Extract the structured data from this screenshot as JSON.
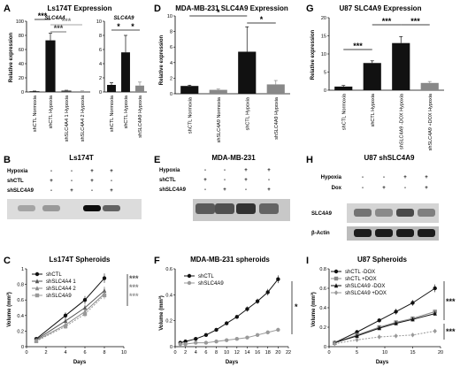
{
  "panels": [
    {
      "id": "A",
      "label": "A",
      "type": "bar",
      "title": "Ls174T Expression",
      "subcharts": [
        {
          "subtitle": "SLC4A4",
          "ylabel": "Relative expression",
          "ylim": [
            0,
            100
          ],
          "yticks": [
            0,
            20,
            40,
            60,
            80,
            100
          ],
          "categories": [
            "shCTL Normoxia",
            "shCTL Hypoxia",
            "shSLC4A4 1 Hypoxia",
            "shSLC4A4 2 Hypoxia"
          ],
          "values": [
            1,
            73,
            2,
            1
          ],
          "errors": [
            0.3,
            10,
            0.5,
            0.5
          ],
          "colors": [
            "#111111",
            "#111111",
            "#444444",
            "#888888"
          ],
          "sigs": [
            "***",
            "***",
            "***"
          ]
        },
        {
          "subtitle": "SLC4A9",
          "ylim": [
            0,
            10
          ],
          "yticks": [
            0,
            2,
            4,
            6,
            8,
            10
          ],
          "categories": [
            "shCTL Normoxia",
            "shCTL Hypoxia",
            "shSLC4A9 Hypoxia"
          ],
          "values": [
            1,
            5.6,
            0.9
          ],
          "errors": [
            0.3,
            2.4,
            0.5
          ],
          "colors": [
            "#111111",
            "#111111",
            "#888888"
          ],
          "sigs": [
            "*",
            "*"
          ]
        }
      ]
    },
    {
      "id": "D",
      "label": "D",
      "type": "bar",
      "title": "MDA-MB-231 SLC4A9 Expression",
      "ylabel": "Relative expression",
      "ylim": [
        0,
        10
      ],
      "yticks": [
        0,
        2,
        4,
        6,
        8,
        10
      ],
      "categories": [
        "shCTL Normoxia",
        "shSLC4A9 Normoxia",
        "shCTL Hypoxia",
        "shSLC4A9 Hypoxia"
      ],
      "values": [
        1,
        0.5,
        5.4,
        1.2
      ],
      "errors": [
        0.1,
        0.1,
        3.2,
        0.5
      ],
      "colors": [
        "#111111",
        "#888888",
        "#111111",
        "#888888"
      ],
      "sigs": [
        "*",
        "*"
      ]
    },
    {
      "id": "G",
      "label": "G",
      "type": "bar",
      "title": "U87 SLC4A9 Expression",
      "ylabel": "Relative expression",
      "ylim": [
        0,
        20
      ],
      "yticks": [
        0,
        5,
        10,
        15,
        20
      ],
      "categories": [
        "shCTL Normoxia",
        "shCTL Hypoxia",
        "shSLC4A9 -DOX Hypoxia",
        "shSLC4A9 +DOX Hypoxia"
      ],
      "values": [
        1,
        7.5,
        13,
        2
      ],
      "errors": [
        0.3,
        0.6,
        1.8,
        0.4
      ],
      "colors": [
        "#111111",
        "#111111",
        "#111111",
        "#888888"
      ],
      "sigs": [
        "***",
        "***",
        "***"
      ]
    },
    {
      "id": "B",
      "label": "B",
      "type": "blot",
      "title": "Ls174T",
      "rows": [
        "Hypoxia",
        "shCTL",
        "shSLC4A9"
      ],
      "signs": [
        [
          "-",
          "-",
          "+",
          "+"
        ],
        [
          "+",
          "-",
          "+",
          "-"
        ],
        [
          "-",
          "+",
          "-",
          "+"
        ]
      ]
    },
    {
      "id": "E",
      "label": "E",
      "type": "blot",
      "title": "MDA-MB-231",
      "rows": [
        "Hypoxia",
        "shCTL",
        "shSLC4A9"
      ],
      "signs": [
        [
          "-",
          "-",
          "+",
          "+"
        ],
        [
          "+",
          "-",
          "+",
          "-"
        ],
        [
          "-",
          "+",
          "-",
          "+"
        ]
      ]
    },
    {
      "id": "H",
      "label": "H",
      "type": "blot",
      "title": "U87 shSLC4A9",
      "rows": [
        "Hypoxia",
        "Dox"
      ],
      "signs": [
        [
          "-",
          "-",
          "+",
          "+"
        ],
        [
          "-",
          "+",
          "-",
          "+"
        ]
      ],
      "bands": [
        "SLC4A9",
        "β-Actin"
      ]
    },
    {
      "id": "C",
      "label": "C",
      "type": "line",
      "title": "Ls174T Spheroids",
      "xlabel": "Days",
      "ylabel": "Volume (mm³)",
      "xlim": [
        0,
        10
      ],
      "ylim": [
        0,
        1.0
      ],
      "xticks": [
        0,
        2,
        4,
        6,
        8,
        10
      ],
      "yticks": [
        0.0,
        0.2,
        0.4,
        0.6,
        0.8,
        1.0
      ],
      "series": [
        {
          "name": "shCTL",
          "color": "#111111",
          "marker": "circle",
          "dash": "",
          "x": [
            1,
            4,
            6,
            8
          ],
          "y": [
            0.1,
            0.4,
            0.6,
            0.88
          ],
          "err": [
            0.02,
            0.04,
            0.05,
            0.06
          ]
        },
        {
          "name": "shSLC4A4 1",
          "color": "#555555",
          "marker": "triangle",
          "dash": "",
          "x": [
            1,
            4,
            6,
            8
          ],
          "y": [
            0.09,
            0.33,
            0.5,
            0.72
          ],
          "err": [
            0.02,
            0.04,
            0.04,
            0.05
          ]
        },
        {
          "name": "shSLC4A4 2",
          "color": "#888888",
          "marker": "triangle",
          "dash": "",
          "x": [
            1,
            4,
            6,
            8
          ],
          "y": [
            0.08,
            0.28,
            0.45,
            0.68
          ],
          "err": [
            0.02,
            0.03,
            0.04,
            0.05
          ]
        },
        {
          "name": "shSLC4A9",
          "color": "#999999",
          "marker": "square",
          "dash": "2,1.5",
          "x": [
            1,
            4,
            6,
            8
          ],
          "y": [
            0.07,
            0.26,
            0.42,
            0.66
          ],
          "err": [
            0.02,
            0.03,
            0.04,
            0.05
          ]
        }
      ],
      "sigs": [
        {
          "text": "***",
          "color": "#555555"
        },
        {
          "text": "***",
          "color": "#888888"
        },
        {
          "text": "***",
          "color": "#999999"
        }
      ]
    },
    {
      "id": "F",
      "label": "F",
      "type": "line",
      "title": "MDA-MB-231 spheroids",
      "xlabel": "Days",
      "ylabel": "Volume (mm³)",
      "xlim": [
        0,
        22
      ],
      "ylim": [
        0,
        0.6
      ],
      "xticks": [
        0,
        2,
        4,
        6,
        8,
        10,
        12,
        14,
        16,
        18,
        20,
        22
      ],
      "yticks": [
        0.0,
        0.2,
        0.4,
        0.6
      ],
      "series": [
        {
          "name": "shCTL",
          "color": "#111111",
          "marker": "circle",
          "dash": "",
          "x": [
            1,
            2,
            4,
            6,
            8,
            10,
            12,
            14,
            16,
            18,
            20
          ],
          "y": [
            0.03,
            0.04,
            0.06,
            0.09,
            0.13,
            0.18,
            0.23,
            0.29,
            0.35,
            0.42,
            0.52
          ],
          "err": [
            0.005,
            0.005,
            0.01,
            0.01,
            0.01,
            0.015,
            0.015,
            0.02,
            0.02,
            0.025,
            0.03
          ]
        },
        {
          "name": "shSLC4A9",
          "color": "#999999",
          "marker": "circle",
          "dash": "",
          "x": [
            1,
            2,
            4,
            6,
            8,
            10,
            12,
            14,
            16,
            18,
            20
          ],
          "y": [
            0.02,
            0.02,
            0.03,
            0.03,
            0.04,
            0.05,
            0.06,
            0.07,
            0.09,
            0.11,
            0.13
          ],
          "err": [
            0.005,
            0.005,
            0.005,
            0.005,
            0.005,
            0.01,
            0.01,
            0.01,
            0.01,
            0.015,
            0.015
          ]
        }
      ],
      "sigs": [
        {
          "text": "*",
          "color": "#111111"
        }
      ]
    },
    {
      "id": "I",
      "label": "I",
      "type": "line",
      "title": "U87 Spheroids",
      "xlabel": "Days",
      "ylabel": "Volume (mm³)",
      "xlim": [
        0,
        20
      ],
      "ylim": [
        0,
        0.8
      ],
      "xticks": [
        0,
        5,
        10,
        15,
        20
      ],
      "yticks": [
        0.0,
        0.2,
        0.4,
        0.6,
        0.8
      ],
      "series": [
        {
          "name": "shCTL -DOX",
          "color": "#111111",
          "marker": "circle",
          "dash": "",
          "x": [
            1,
            5,
            9,
            12,
            15,
            19
          ],
          "y": [
            0.04,
            0.15,
            0.27,
            0.36,
            0.45,
            0.6
          ],
          "err": [
            0.01,
            0.02,
            0.02,
            0.03,
            0.03,
            0.04
          ]
        },
        {
          "name": "shCTL +DOX",
          "color": "#888888",
          "marker": "square",
          "dash": "",
          "x": [
            1,
            5,
            9,
            12,
            15,
            19
          ],
          "y": [
            0.04,
            0.12,
            0.2,
            0.25,
            0.29,
            0.36
          ],
          "err": [
            0.01,
            0.01,
            0.02,
            0.02,
            0.02,
            0.02
          ]
        },
        {
          "name": "shSLC4A9 -DOX",
          "color": "#111111",
          "marker": "triangle",
          "dash": "",
          "x": [
            1,
            5,
            9,
            12,
            15,
            19
          ],
          "y": [
            0.04,
            0.11,
            0.19,
            0.24,
            0.28,
            0.34
          ],
          "err": [
            0.01,
            0.01,
            0.02,
            0.02,
            0.02,
            0.02
          ]
        },
        {
          "name": "shSLC4A9 +DOX",
          "color": "#999999",
          "marker": "diamond",
          "dash": "2,1.5",
          "x": [
            1,
            5,
            9,
            12,
            15,
            19
          ],
          "y": [
            0.03,
            0.07,
            0.1,
            0.11,
            0.12,
            0.16
          ],
          "err": [
            0.005,
            0.01,
            0.01,
            0.01,
            0.01,
            0.01
          ]
        }
      ],
      "sigs": [
        {
          "text": "***",
          "color": "#111111"
        },
        {
          "text": "***",
          "color": "#111111"
        }
      ]
    }
  ]
}
